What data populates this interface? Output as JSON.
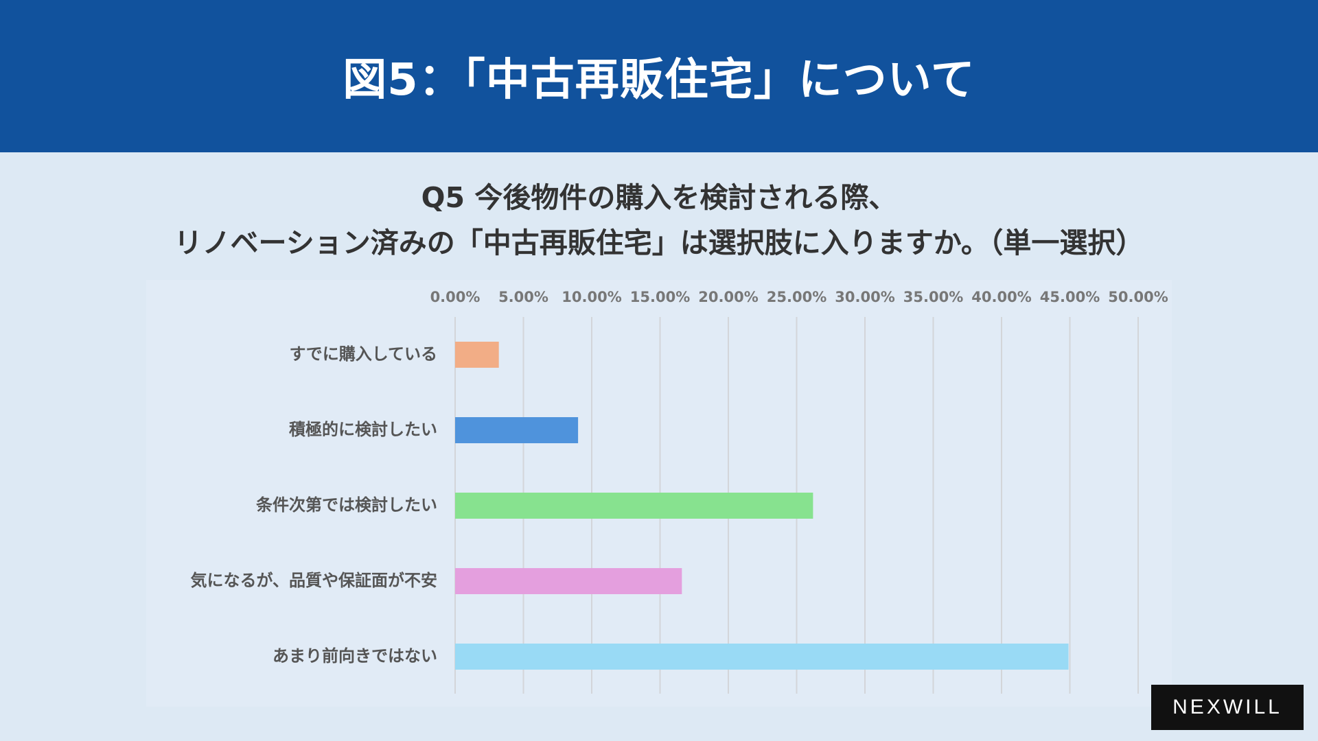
{
  "header": {
    "title": "図5：「中古再販住宅」について"
  },
  "question": {
    "line1": "Q5 今後物件の購入を検討される際、",
    "line2": "リノベーション済みの「中古再販住宅」は選択肢に入りますか。（単一選択）"
  },
  "brand": {
    "logo_text": "NEXWILL"
  },
  "colors": {
    "header_bg": "#11529d",
    "page_bg": "#dde9f4",
    "chart_bg": "#e1ebf6",
    "brand_bg": "#111111"
  },
  "chart_data": {
    "type": "bar",
    "orientation": "horizontal",
    "categories": [
      "すでに購入している",
      "積極的に検討したい",
      "条件次第では検討したい",
      "気になるが、品質や保証面が不安",
      "あまり前向きではない"
    ],
    "values": [
      3.2,
      9.0,
      26.2,
      16.6,
      44.9
    ],
    "colors": [
      "#f2ad86",
      "#4f93dc",
      "#87e28f",
      "#e49fde",
      "#99daf5"
    ],
    "xlim": [
      0,
      50
    ],
    "tick_values": [
      0,
      5,
      10,
      15,
      20,
      25,
      30,
      35,
      40,
      45,
      50
    ],
    "tick_labels": [
      "0.00%",
      "5.00%",
      "10.00%",
      "15.00%",
      "20.00%",
      "25.00%",
      "30.00%",
      "35.00%",
      "40.00%",
      "45.00%",
      "50.00%"
    ],
    "axis_position": "top",
    "grid": true,
    "legend": "none"
  }
}
